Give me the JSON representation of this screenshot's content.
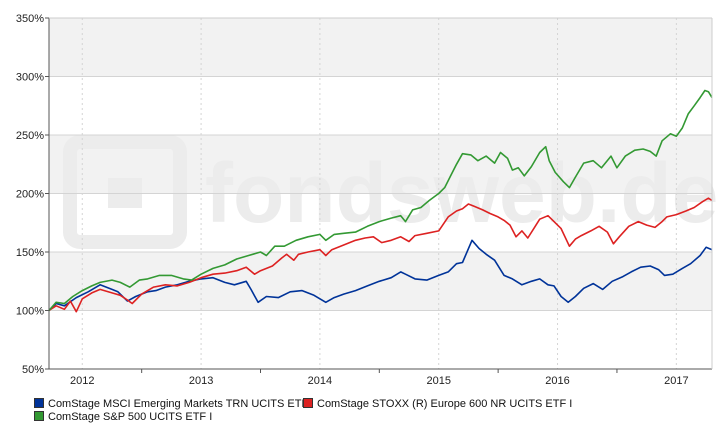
{
  "watermark": "fondsweb.de",
  "chart_data": {
    "type": "line",
    "ylim": [
      50,
      350
    ],
    "yticks": [
      50,
      100,
      150,
      200,
      250,
      300,
      350
    ],
    "ytick_labels": [
      "50%",
      "100%",
      "150%",
      "200%",
      "250%",
      "300%",
      "350%"
    ],
    "xlim": [
      2011.72,
      2017.3
    ],
    "xticks": [
      2012,
      2013,
      2014,
      2015,
      2016,
      2017
    ],
    "xtick_labels": [
      "2012",
      "2013",
      "2014",
      "2015",
      "2016",
      "2017"
    ],
    "grid": true,
    "legend_position": "bottom",
    "series": [
      {
        "name": "ComStage MSCI Emerging Markets TRN UCITS ETF",
        "color": "#003399",
        "points": [
          [
            2011.72,
            100
          ],
          [
            2011.78,
            106
          ],
          [
            2011.85,
            104
          ],
          [
            2011.95,
            111
          ],
          [
            2012.05,
            116
          ],
          [
            2012.15,
            122
          ],
          [
            2012.25,
            118
          ],
          [
            2012.3,
            116
          ],
          [
            2012.38,
            108
          ],
          [
            2012.45,
            112
          ],
          [
            2012.55,
            116
          ],
          [
            2012.62,
            117
          ],
          [
            2012.7,
            120
          ],
          [
            2012.8,
            122
          ],
          [
            2012.9,
            125
          ],
          [
            2013.0,
            127
          ],
          [
            2013.1,
            128
          ],
          [
            2013.2,
            124
          ],
          [
            2013.28,
            122
          ],
          [
            2013.38,
            125
          ],
          [
            2013.42,
            118
          ],
          [
            2013.48,
            107
          ],
          [
            2013.55,
            112
          ],
          [
            2013.65,
            111
          ],
          [
            2013.75,
            116
          ],
          [
            2013.85,
            117
          ],
          [
            2013.95,
            113
          ],
          [
            2014.05,
            107
          ],
          [
            2014.12,
            111
          ],
          [
            2014.2,
            114
          ],
          [
            2014.3,
            117
          ],
          [
            2014.4,
            121
          ],
          [
            2014.5,
            125
          ],
          [
            2014.6,
            128
          ],
          [
            2014.68,
            133
          ],
          [
            2014.72,
            131
          ],
          [
            2014.8,
            127
          ],
          [
            2014.9,
            126
          ],
          [
            2015.0,
            130
          ],
          [
            2015.08,
            133
          ],
          [
            2015.15,
            140
          ],
          [
            2015.2,
            141
          ],
          [
            2015.28,
            160
          ],
          [
            2015.34,
            153
          ],
          [
            2015.4,
            148
          ],
          [
            2015.47,
            143
          ],
          [
            2015.55,
            130
          ],
          [
            2015.62,
            127
          ],
          [
            2015.7,
            122
          ],
          [
            2015.78,
            125
          ],
          [
            2015.85,
            127
          ],
          [
            2015.92,
            122
          ],
          [
            2015.97,
            121
          ],
          [
            2016.03,
            112
          ],
          [
            2016.09,
            107
          ],
          [
            2016.15,
            112
          ],
          [
            2016.22,
            119
          ],
          [
            2016.3,
            123
          ],
          [
            2016.38,
            118
          ],
          [
            2016.46,
            125
          ],
          [
            2016.55,
            129
          ],
          [
            2016.62,
            133
          ],
          [
            2016.7,
            137
          ],
          [
            2016.78,
            138
          ],
          [
            2016.85,
            135
          ],
          [
            2016.9,
            130
          ],
          [
            2016.97,
            131
          ],
          [
            2017.05,
            136
          ],
          [
            2017.12,
            140
          ],
          [
            2017.2,
            147
          ],
          [
            2017.25,
            154
          ],
          [
            2017.3,
            152
          ]
        ]
      },
      {
        "name": "ComStage STOXX (R) Europe 600 NR UCITS ETF I",
        "color": "#dd2222",
        "points": [
          [
            2011.72,
            100
          ],
          [
            2011.78,
            104
          ],
          [
            2011.85,
            101
          ],
          [
            2011.9,
            108
          ],
          [
            2011.95,
            99
          ],
          [
            2012.0,
            110
          ],
          [
            2012.08,
            115
          ],
          [
            2012.15,
            118
          ],
          [
            2012.25,
            115
          ],
          [
            2012.32,
            113
          ],
          [
            2012.38,
            109
          ],
          [
            2012.42,
            106
          ],
          [
            2012.5,
            114
          ],
          [
            2012.6,
            120
          ],
          [
            2012.7,
            122
          ],
          [
            2012.8,
            121
          ],
          [
            2012.9,
            124
          ],
          [
            2013.0,
            128
          ],
          [
            2013.1,
            131
          ],
          [
            2013.2,
            132
          ],
          [
            2013.3,
            134
          ],
          [
            2013.38,
            137
          ],
          [
            2013.45,
            131
          ],
          [
            2013.5,
            134
          ],
          [
            2013.6,
            138
          ],
          [
            2013.68,
            145
          ],
          [
            2013.72,
            148
          ],
          [
            2013.78,
            143
          ],
          [
            2013.82,
            148
          ],
          [
            2013.9,
            150
          ],
          [
            2014.0,
            152
          ],
          [
            2014.05,
            147
          ],
          [
            2014.1,
            152
          ],
          [
            2014.2,
            156
          ],
          [
            2014.3,
            160
          ],
          [
            2014.38,
            162
          ],
          [
            2014.45,
            163
          ],
          [
            2014.52,
            158
          ],
          [
            2014.6,
            160
          ],
          [
            2014.68,
            163
          ],
          [
            2014.75,
            159
          ],
          [
            2014.8,
            164
          ],
          [
            2014.9,
            166
          ],
          [
            2015.0,
            168
          ],
          [
            2015.08,
            180
          ],
          [
            2015.15,
            185
          ],
          [
            2015.2,
            187
          ],
          [
            2015.25,
            191
          ],
          [
            2015.3,
            189
          ],
          [
            2015.37,
            186
          ],
          [
            2015.43,
            183
          ],
          [
            2015.5,
            180
          ],
          [
            2015.55,
            177
          ],
          [
            2015.6,
            173
          ],
          [
            2015.65,
            163
          ],
          [
            2015.7,
            168
          ],
          [
            2015.75,
            162
          ],
          [
            2015.8,
            170
          ],
          [
            2015.85,
            178
          ],
          [
            2015.92,
            181
          ],
          [
            2015.97,
            176
          ],
          [
            2016.03,
            170
          ],
          [
            2016.1,
            155
          ],
          [
            2016.15,
            161
          ],
          [
            2016.2,
            164
          ],
          [
            2016.28,
            168
          ],
          [
            2016.35,
            172
          ],
          [
            2016.42,
            167
          ],
          [
            2016.47,
            157
          ],
          [
            2016.52,
            163
          ],
          [
            2016.6,
            172
          ],
          [
            2016.68,
            176
          ],
          [
            2016.75,
            173
          ],
          [
            2016.82,
            171
          ],
          [
            2016.88,
            176
          ],
          [
            2016.92,
            180
          ],
          [
            2017.0,
            182
          ],
          [
            2017.08,
            185
          ],
          [
            2017.15,
            188
          ],
          [
            2017.22,
            193
          ],
          [
            2017.27,
            196
          ],
          [
            2017.3,
            194
          ]
        ]
      },
      {
        "name": "ComStage S&P 500 UCITS ETF I",
        "color": "#339933",
        "points": [
          [
            2011.72,
            100
          ],
          [
            2011.78,
            107
          ],
          [
            2011.85,
            106
          ],
          [
            2011.92,
            112
          ],
          [
            2012.0,
            117
          ],
          [
            2012.08,
            121
          ],
          [
            2012.15,
            124
          ],
          [
            2012.25,
            126
          ],
          [
            2012.32,
            124
          ],
          [
            2012.4,
            120
          ],
          [
            2012.48,
            126
          ],
          [
            2012.55,
            127
          ],
          [
            2012.65,
            130
          ],
          [
            2012.75,
            130
          ],
          [
            2012.85,
            127
          ],
          [
            2012.92,
            126
          ],
          [
            2013.0,
            131
          ],
          [
            2013.1,
            136
          ],
          [
            2013.2,
            139
          ],
          [
            2013.3,
            144
          ],
          [
            2013.4,
            147
          ],
          [
            2013.5,
            150
          ],
          [
            2013.55,
            147
          ],
          [
            2013.62,
            155
          ],
          [
            2013.7,
            155
          ],
          [
            2013.8,
            160
          ],
          [
            2013.9,
            163
          ],
          [
            2014.0,
            165
          ],
          [
            2014.05,
            160
          ],
          [
            2014.12,
            165
          ],
          [
            2014.2,
            166
          ],
          [
            2014.3,
            167
          ],
          [
            2014.4,
            172
          ],
          [
            2014.5,
            176
          ],
          [
            2014.6,
            179
          ],
          [
            2014.68,
            181
          ],
          [
            2014.72,
            176
          ],
          [
            2014.78,
            186
          ],
          [
            2014.85,
            188
          ],
          [
            2014.92,
            194
          ],
          [
            2015.0,
            200
          ],
          [
            2015.05,
            205
          ],
          [
            2015.1,
            215
          ],
          [
            2015.15,
            225
          ],
          [
            2015.2,
            234
          ],
          [
            2015.27,
            233
          ],
          [
            2015.33,
            228
          ],
          [
            2015.4,
            232
          ],
          [
            2015.47,
            226
          ],
          [
            2015.52,
            235
          ],
          [
            2015.58,
            230
          ],
          [
            2015.62,
            220
          ],
          [
            2015.67,
            222
          ],
          [
            2015.72,
            215
          ],
          [
            2015.78,
            223
          ],
          [
            2015.85,
            235
          ],
          [
            2015.9,
            240
          ],
          [
            2015.93,
            228
          ],
          [
            2015.98,
            218
          ],
          [
            2016.05,
            210
          ],
          [
            2016.1,
            205
          ],
          [
            2016.15,
            214
          ],
          [
            2016.22,
            226
          ],
          [
            2016.3,
            228
          ],
          [
            2016.37,
            222
          ],
          [
            2016.45,
            232
          ],
          [
            2016.5,
            222
          ],
          [
            2016.57,
            232
          ],
          [
            2016.65,
            237
          ],
          [
            2016.72,
            238
          ],
          [
            2016.78,
            236
          ],
          [
            2016.83,
            232
          ],
          [
            2016.88,
            245
          ],
          [
            2016.95,
            251
          ],
          [
            2017.0,
            249
          ],
          [
            2017.05,
            256
          ],
          [
            2017.1,
            268
          ],
          [
            2017.15,
            275
          ],
          [
            2017.2,
            282
          ],
          [
            2017.24,
            288
          ],
          [
            2017.27,
            287
          ],
          [
            2017.3,
            282
          ]
        ]
      }
    ]
  }
}
